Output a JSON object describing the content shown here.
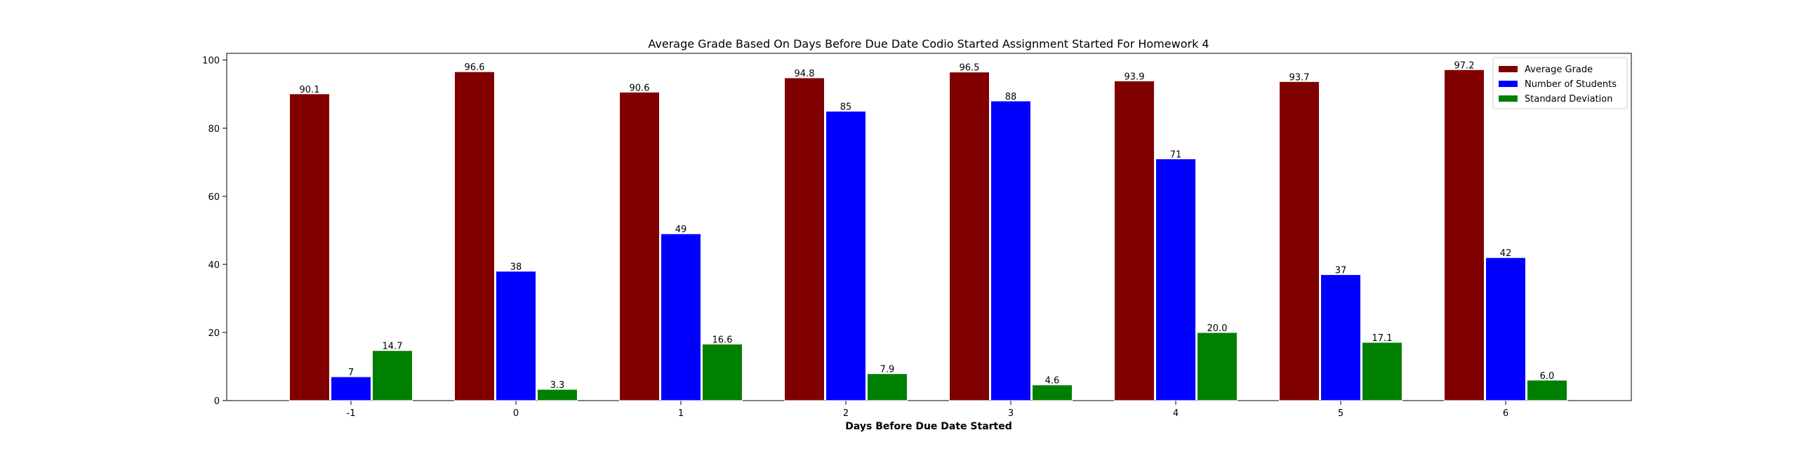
{
  "chart_data": {
    "type": "bar",
    "title": "Average Grade Based On Days Before Due Date Codio Started Assignment Started For Homework 4",
    "xlabel": "Days Before Due Date Started",
    "ylabel": "",
    "categories": [
      "-1",
      "0",
      "1",
      "2",
      "3",
      "4",
      "5",
      "6"
    ],
    "ylim": [
      0,
      102
    ],
    "yticks": [
      0,
      20,
      40,
      60,
      80,
      100
    ],
    "grid": false,
    "legend_position": "top-right",
    "series": [
      {
        "name": "Average Grade",
        "color": "#800000",
        "values": [
          90.1,
          96.6,
          90.6,
          94.8,
          96.5,
          93.9,
          93.7,
          97.2
        ],
        "labels": [
          "90.1",
          "96.6",
          "90.6",
          "94.8",
          "96.5",
          "93.9",
          "93.7",
          "97.2"
        ]
      },
      {
        "name": "Number of Students",
        "color": "#0000ff",
        "values": [
          7,
          38,
          49,
          85,
          88,
          71,
          37,
          42
        ],
        "labels": [
          "7",
          "38",
          "49",
          "85",
          "88",
          "71",
          "37",
          "42"
        ]
      },
      {
        "name": "Standard Deviation",
        "color": "#008000",
        "values": [
          14.7,
          3.3,
          16.6,
          7.9,
          4.6,
          20.0,
          17.1,
          6.0
        ],
        "labels": [
          "14.7",
          "3.3",
          "16.6",
          "7.9",
          "4.6",
          "20.0",
          "17.1",
          "6.0"
        ]
      }
    ]
  }
}
